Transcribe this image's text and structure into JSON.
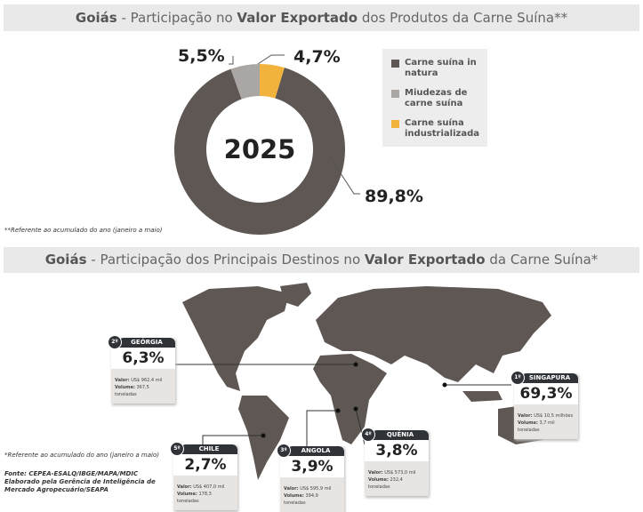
{
  "title1": {
    "region": "Goiás",
    "a": " - Participação no ",
    "b": "Valor Exportado",
    "c": " dos Produtos da Carne Suína**"
  },
  "chart_data": {
    "type": "pie",
    "center_label": "2025",
    "categories": [
      "Carne suína in natura",
      "Miudezas de carne suína",
      "Carne suína industrializada"
    ],
    "values": [
      89.8,
      5.5,
      4.7
    ],
    "labels": [
      "89,8%",
      "5,5%",
      "4,7%"
    ],
    "colors": [
      "#5e5753",
      "#a9a6a4",
      "#f2b33d"
    ],
    "legend_position": "right"
  },
  "footnote1": "**Referente ao acumulado do ano (janeiro a maio)",
  "title2": {
    "region": "Goiás",
    "a": " - Participação dos Principais Destinos no ",
    "b": "Valor Exportado",
    "c": " da Carne Suína*"
  },
  "destinations": [
    {
      "rank": "1º",
      "country": "SINGAPURA",
      "share": "69,3%",
      "valor": "US$ 10,5 milhões",
      "volume": "3,7 mil toneladas"
    },
    {
      "rank": "2º",
      "country": "GEÓRGIA",
      "share": "6,3%",
      "valor": "US$ 962,4 mil",
      "volume": "367,5 toneladas"
    },
    {
      "rank": "3º",
      "country": "ANGOLA",
      "share": "3,9%",
      "valor": "US$ 595,9 mil",
      "volume": "394,9 toneladas"
    },
    {
      "rank": "4º",
      "country": "QUÊNIA",
      "share": "3,8%",
      "valor": "US$ 573,0 mil",
      "volume": "232,4 toneladas"
    },
    {
      "rank": "5º",
      "country": "CHILE",
      "share": "2,7%",
      "valor": "US$ 407,0 mil",
      "volume": "178,3 toneladas"
    }
  ],
  "labels": {
    "valor": "Valor:",
    "volume": "Volume:"
  },
  "footnote2": "*Referente ao acumulado do ano (janeiro a maio)",
  "source": {
    "line1": "Fonte: CEPEA-ESALQ/IBGE/MAPA/MDIC",
    "line2": "Elaborado pela Gerência de Inteligência de",
    "line3": "Mercado Agropecuário/SEAPA"
  }
}
